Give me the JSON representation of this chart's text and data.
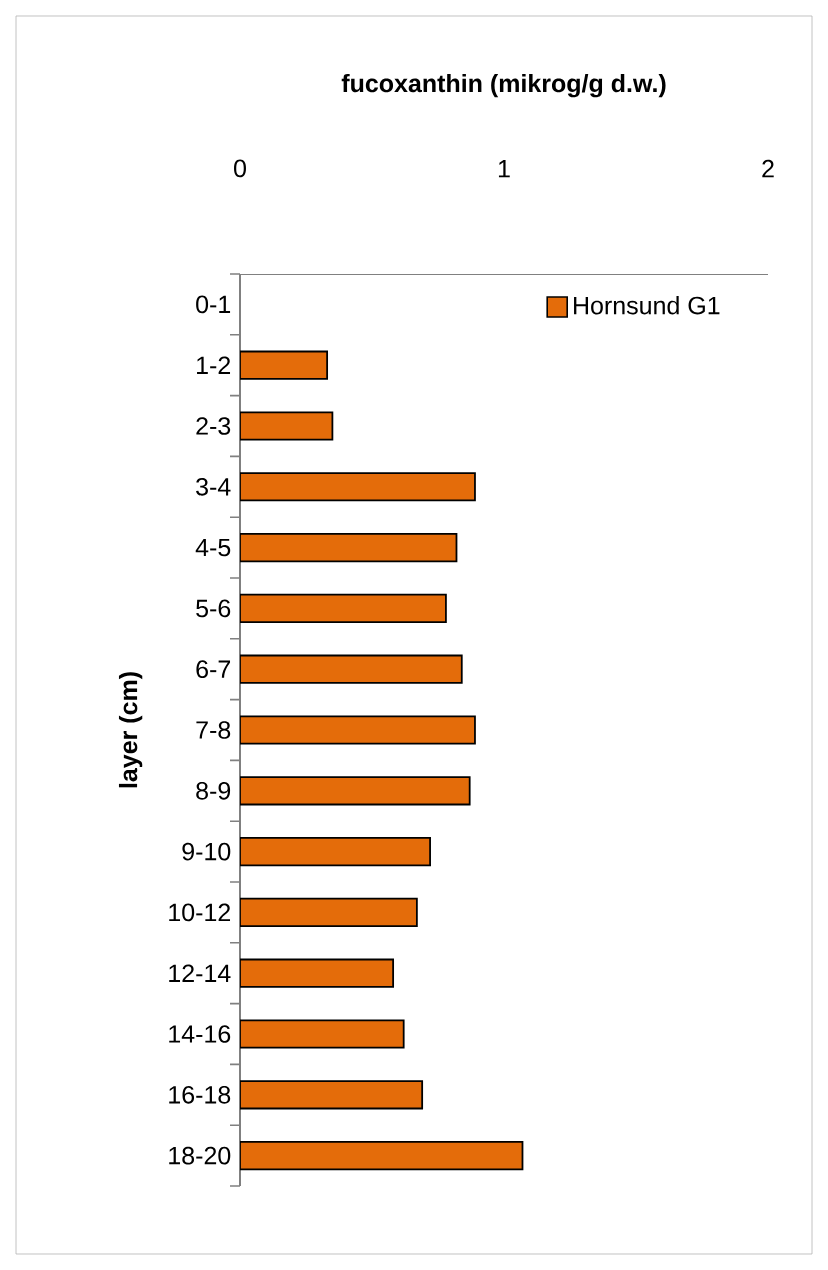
{
  "chart_data": {
    "type": "bar",
    "orientation": "horizontal",
    "title": "fucoxanthin (mikrog/g d.w.)",
    "ylabel": "layer (cm)",
    "categories": [
      "0-1",
      "1-2",
      "2-3",
      "3-4",
      "4-5",
      "5-6",
      "6-7",
      "7-8",
      "8-9",
      "9-10",
      "10-12",
      "12-14",
      "14-16",
      "16-18",
      "18-20"
    ],
    "series": [
      {
        "name": "Hornsund G1",
        "color": "#e46c0a",
        "values": [
          null,
          0.33,
          0.35,
          0.89,
          0.82,
          0.78,
          0.84,
          0.89,
          0.87,
          0.72,
          0.67,
          0.58,
          0.62,
          0.69,
          1.07
        ]
      }
    ],
    "xlim": [
      0,
      2
    ],
    "xticks": [
      0,
      1,
      2
    ],
    "legend": "top right"
  }
}
